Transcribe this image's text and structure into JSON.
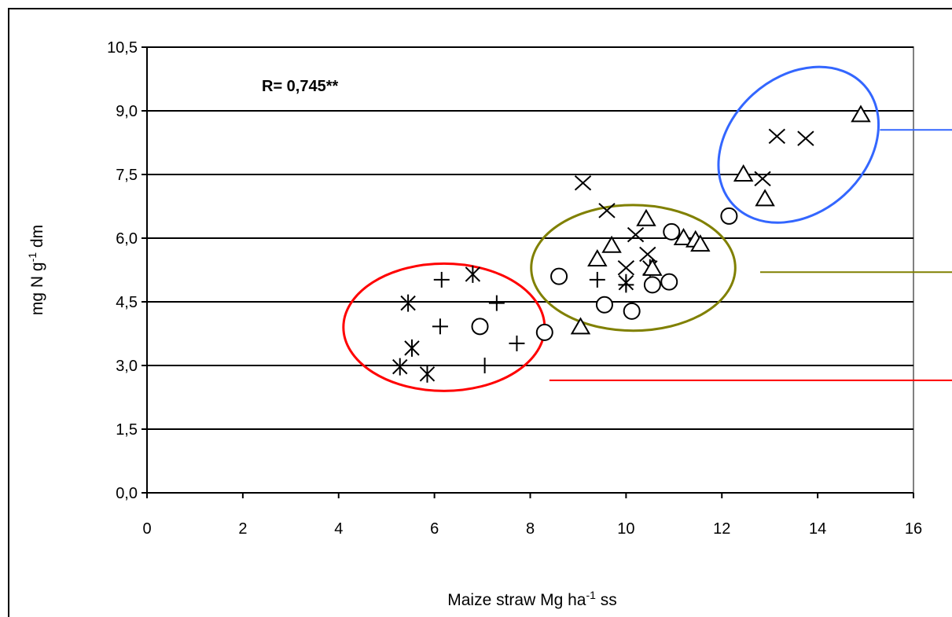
{
  "chart_data": {
    "type": "scatter",
    "annotation": "R= 0,745**",
    "xlabel": {
      "text": "Maize straw Mg ha",
      "sup": "-1",
      "suffix": " ss"
    },
    "ylabel": {
      "text": "mg N g",
      "sup": "-1",
      "suffix": " dm"
    },
    "xlim": [
      0,
      16
    ],
    "ylim": [
      0,
      10.5
    ],
    "x_ticks": [
      0,
      2,
      4,
      6,
      8,
      10,
      12,
      14,
      16
    ],
    "x_tick_labels": [
      "0",
      "2",
      "4",
      "6",
      "8",
      "10",
      "12",
      "14",
      "16"
    ],
    "y_ticks": [
      0,
      1.5,
      3,
      4.5,
      6,
      7.5,
      9,
      10.5
    ],
    "y_tick_labels": [
      "0,0",
      "1,5",
      "3,0",
      "4,5",
      "6,0",
      "7,5",
      "9,0",
      "10,5"
    ],
    "grid": "horizontal",
    "series": [
      {
        "marker": "asterisk",
        "points": [
          [
            5.45,
            4.47
          ],
          [
            5.53,
            3.41
          ],
          [
            5.28,
            2.97
          ],
          [
            5.85,
            2.8
          ],
          [
            6.8,
            5.15
          ],
          [
            10.0,
            4.95
          ],
          [
            10.5,
            5.3
          ]
        ]
      },
      {
        "marker": "plus",
        "points": [
          [
            6.15,
            5.02
          ],
          [
            6.12,
            3.92
          ],
          [
            7.3,
            4.47
          ],
          [
            7.72,
            3.52
          ],
          [
            7.05,
            3.0
          ],
          [
            9.4,
            5.02
          ],
          [
            10.0,
            4.9
          ]
        ]
      },
      {
        "marker": "circle",
        "points": [
          [
            6.95,
            3.92
          ],
          [
            8.3,
            3.78
          ],
          [
            8.6,
            5.1
          ],
          [
            9.55,
            4.43
          ],
          [
            10.12,
            4.28
          ],
          [
            10.55,
            4.9
          ],
          [
            10.9,
            4.97
          ],
          [
            10.95,
            6.15
          ],
          [
            12.15,
            6.52
          ]
        ]
      },
      {
        "marker": "triangle",
        "points": [
          [
            9.05,
            3.9
          ],
          [
            9.4,
            5.5
          ],
          [
            9.7,
            5.82
          ],
          [
            10.42,
            6.45
          ],
          [
            10.55,
            5.28
          ],
          [
            11.2,
            6.0
          ],
          [
            11.45,
            5.95
          ],
          [
            11.55,
            5.85
          ],
          [
            12.45,
            7.5
          ],
          [
            12.9,
            6.92
          ],
          [
            14.9,
            8.9
          ]
        ]
      },
      {
        "marker": "x",
        "points": [
          [
            9.1,
            7.3
          ],
          [
            9.6,
            6.65
          ],
          [
            10.0,
            5.3
          ],
          [
            10.2,
            6.08
          ],
          [
            10.45,
            5.62
          ],
          [
            12.85,
            7.4
          ],
          [
            13.15,
            8.4
          ],
          [
            13.75,
            8.35
          ]
        ]
      }
    ],
    "groups": [
      {
        "color": "#ff0000",
        "center": [
          6.2,
          3.9
        ],
        "radius": [
          2.1,
          1.5
        ],
        "leader_y": 2.65
      },
      {
        "color": "#808000",
        "center": [
          10.15,
          5.3
        ],
        "radius": [
          2.13,
          1.48
        ],
        "leader_y": 5.2
      },
      {
        "color": "#3366ff",
        "center": [
          13.6,
          8.2
        ],
        "radius": [
          1.85,
          1.6
        ],
        "rotation": -42,
        "leader_y": 8.55
      }
    ]
  }
}
